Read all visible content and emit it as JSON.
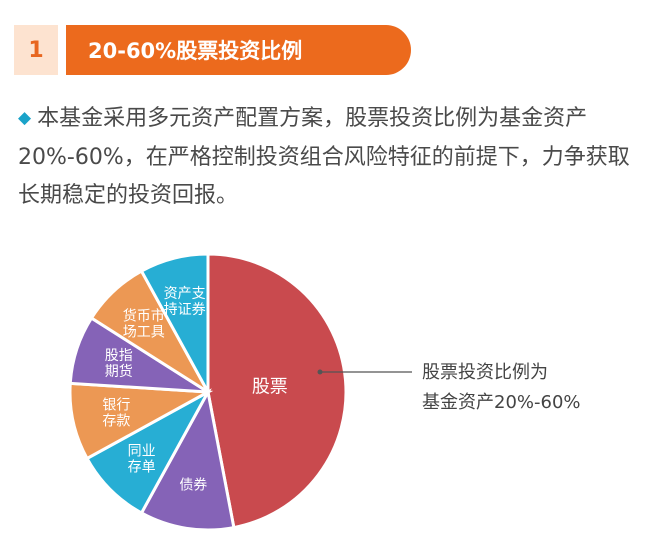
{
  "section": {
    "number": "1",
    "title": "20-60%股票投资比例"
  },
  "description": {
    "bullet_icon": "diamond-icon",
    "text": "本基金采用多元资产配置方案，股票投资比例为基金资产20%-60%，在严格控制投资组合风险特征的前提下，力争获取长期稳定的投资回报。"
  },
  "callout": {
    "line1": "股票投资比例为",
    "line2": "基金资产20%-60%"
  },
  "chart_data": {
    "type": "pie",
    "slices": [
      {
        "label": [
          "股票"
        ],
        "color": "#c94a4e",
        "size": 0.47
      },
      {
        "label": [
          "债券"
        ],
        "color": "#8563b7",
        "size": 0.11
      },
      {
        "label": [
          "同业",
          "存单"
        ],
        "color": "#27aed4",
        "size": 0.09
      },
      {
        "label": [
          "银行",
          "存款"
        ],
        "color": "#ec9854",
        "size": 0.09
      },
      {
        "label": [
          "股指",
          "期货"
        ],
        "color": "#8563b7",
        "size": 0.08
      },
      {
        "label": [
          "货币市",
          "场工具"
        ],
        "color": "#ec9854",
        "size": 0.08
      },
      {
        "label": [
          "资产支",
          "持证券"
        ],
        "color": "#27aed4",
        "size": 0.08
      }
    ]
  }
}
